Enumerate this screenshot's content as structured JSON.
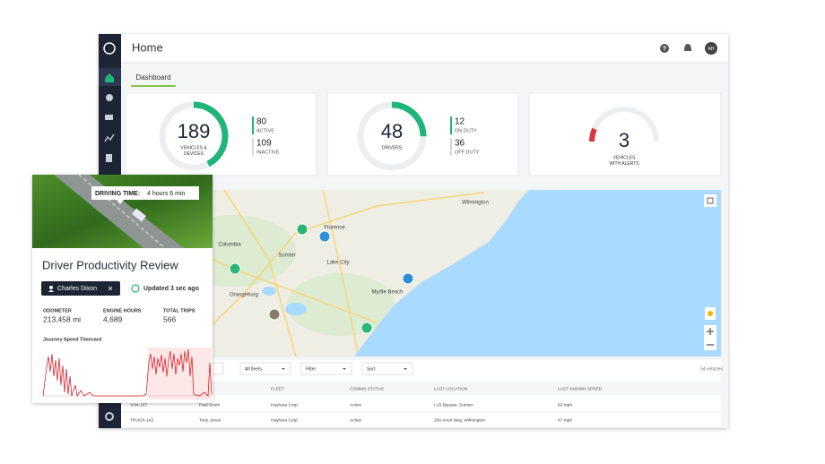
{
  "header": {
    "title": "Home",
    "help": "?",
    "avatar": "AH"
  },
  "tabs": [
    "Dashboard"
  ],
  "cards": [
    {
      "value": 189,
      "label": [
        "VEHICLES &",
        "DEVICES"
      ],
      "stats": [
        {
          "value": 80,
          "label": "ACTIVE"
        },
        {
          "value": 109,
          "label": "INACTIVE"
        }
      ]
    },
    {
      "value": 48,
      "label": [
        "DRIVERS"
      ],
      "stats": [
        {
          "value": 12,
          "label": "ON DUTY"
        },
        {
          "value": 36,
          "label": "OFF DUTY"
        }
      ]
    },
    {
      "value": 3,
      "label": [
        "VEHICLES",
        "WITH ALERTS"
      ]
    }
  ],
  "map": {
    "labels": [
      "Columbia",
      "Florence",
      "Sumter",
      "Lake City",
      "Orangeburg",
      "Myrtle Beach",
      "Wilmington"
    ]
  },
  "filters": {
    "options": [
      "All fleets",
      "Filter",
      "Sort"
    ],
    "count": "54 vehicles"
  },
  "table": {
    "columns": [
      "FLEET",
      "COMMS STATUS",
      "LAST LOCATION",
      "LAST KNOWN SPEED"
    ],
    "rows": [
      [
        "VAN-107",
        "Paul Smith",
        "Hayhara Corp",
        "Active",
        "I-15 Bypass, Sumter",
        "63 mph"
      ],
      [
        "TRUCK-142",
        "Tony Jones",
        "Hayhara Corp",
        "Active",
        "200 Anon Way, Wilmington",
        "47 mph"
      ]
    ]
  },
  "driver_card": {
    "tooltip_label": "DRIVING TIME:",
    "tooltip_value": "4 hours 6 min",
    "title": "Driver Productivity Review",
    "driver": "Charles Dixon",
    "updated": "Updated 3 sec ago",
    "stats": [
      {
        "label": "ODOMETER",
        "value": "213,458 mi"
      },
      {
        "label": "ENGINE HOURS",
        "value": "4,689"
      },
      {
        "label": "TOTAL TRIPS",
        "value": "566"
      }
    ],
    "chart_title": "Journey Speed Timecard"
  }
}
